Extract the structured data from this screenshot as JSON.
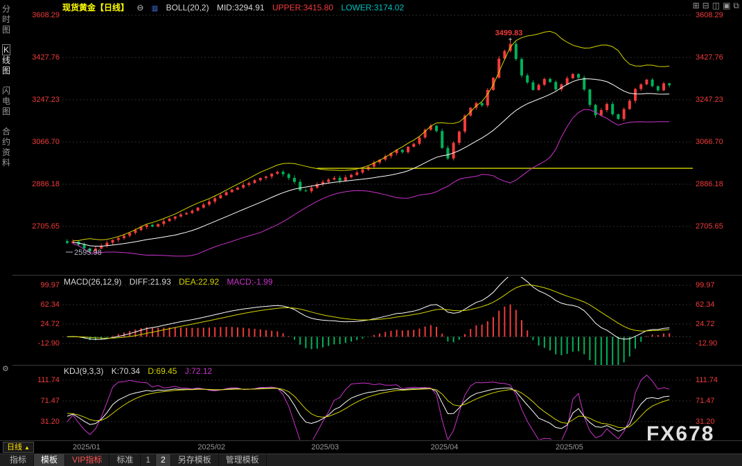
{
  "sidebar": {
    "items": [
      {
        "label": "分时图",
        "selected": false
      },
      {
        "label": "K线图",
        "selected": true
      },
      {
        "label": "闪电图",
        "selected": false
      },
      {
        "label": "合约资料",
        "selected": false
      }
    ],
    "gear_icon": "⚙"
  },
  "header": {
    "symbol": "现货黄金【日线】",
    "collapse_icon": "⊖",
    "indicator_icon": "▥",
    "indicator": "BOLL(20,2)",
    "mid": "MID:3294.91",
    "upper": "UPPER:3415.80",
    "lower": "LOWER:3174.02"
  },
  "window_icons": {
    "icons": [
      {
        "name": "layout-grid",
        "glyph": "⊞"
      },
      {
        "name": "layout-rows",
        "glyph": "⊟"
      },
      {
        "name": "layout-columns",
        "glyph": "◫"
      },
      {
        "name": "layout-single",
        "glyph": "▣"
      },
      {
        "name": "expand",
        "glyph": "⧉"
      }
    ]
  },
  "macd_header": {
    "name": "MACD(26,12,9)",
    "diff": "DIFF:21.93",
    "dea": "DEA:22.92",
    "macd": "MACD:-1.99"
  },
  "kdj_header": {
    "name": "KDJ(9,3,3)",
    "k": "K:70.34",
    "d": "D:69.45",
    "j": "J:72.12"
  },
  "period_selector": {
    "label": "日线",
    "arrow": "▲"
  },
  "watermark": "FX678",
  "bottom_bar": {
    "tabs": [
      {
        "label": "指标"
      },
      {
        "label": "模板",
        "selected": true
      },
      {
        "label": "VIP指标",
        "vip": true
      },
      {
        "label": "标准"
      },
      {
        "label": "1"
      },
      {
        "label": "2",
        "selected": true
      },
      {
        "label": "另存模板"
      },
      {
        "label": "管理模板"
      }
    ]
  },
  "chart_data": {
    "type": "candlestick",
    "title": "现货黄金 日线 (Spot Gold Daily)",
    "main": {
      "y_ticks": [
        3608.29,
        3427.76,
        3247.23,
        3066.7,
        2886.18,
        2705.65
      ],
      "month_labels": [
        "2025/01",
        "2025/02",
        "2025/03",
        "2025/04",
        "2025/05"
      ],
      "month_start_idx": [
        0,
        22,
        42,
        63,
        85
      ],
      "closes": [
        2635,
        2641,
        2628,
        2612,
        2600,
        2611,
        2623,
        2636,
        2648,
        2656,
        2666,
        2678,
        2690,
        2703,
        2712,
        2705,
        2716,
        2728,
        2739,
        2748,
        2757,
        2763,
        2773,
        2786,
        2799,
        2812,
        2826,
        2839,
        2852,
        2863,
        2871,
        2883,
        2891,
        2903,
        2913,
        2919,
        2931,
        2939,
        2929,
        2913,
        2896,
        2859,
        2856,
        2871,
        2886,
        2896,
        2906,
        2913,
        2901,
        2916,
        2926,
        2936,
        2949,
        2961,
        2979,
        2991,
        3006,
        3019,
        3033,
        3023,
        3046,
        3059,
        3086,
        3119,
        3136,
        3113,
        3041,
        2996,
        3063,
        3111,
        3179,
        3213,
        3233,
        3223,
        3289,
        3341,
        3423,
        3456,
        3486,
        3421,
        3351,
        3321,
        3289,
        3311,
        3336,
        3323,
        3291,
        3313,
        3339,
        3357,
        3341,
        3291,
        3225,
        3181,
        3203,
        3229,
        3185,
        3165,
        3207,
        3243,
        3293,
        3313,
        3333,
        3305,
        3287,
        3317,
        3309
      ],
      "annotations": {
        "high": {
          "label": "3499.83",
          "idx": 78
        },
        "band_start": {
          "label": "2595.98"
        },
        "hline": {
          "value": 2954,
          "from_idx": 44
        }
      }
    },
    "boll": {
      "period": 20,
      "mult": 2
    },
    "macd": {
      "fast": 12,
      "slow": 26,
      "signal": 9,
      "y_ticks": [
        99.97,
        62.34,
        24.72,
        -12.9
      ]
    },
    "kdj": {
      "n": 9,
      "y_ticks": [
        111.74,
        71.47,
        31.2
      ]
    },
    "colors": {
      "up": "#f23b3b",
      "down": "#00b25a",
      "boll_upper": "#d6d600",
      "boll_mid": "#ffffff",
      "boll_lower": "#cc33cc",
      "diff": "#ffffff",
      "dea": "#d6d600",
      "bar_pos": "#f23b3b",
      "bar_neg": "#00b25a",
      "k": "#ffffff",
      "d": "#d6d600",
      "j": "#cc33cc",
      "axis": "#f23b3b",
      "grid": "#2e2e2e",
      "hline": "#d6d600"
    }
  }
}
